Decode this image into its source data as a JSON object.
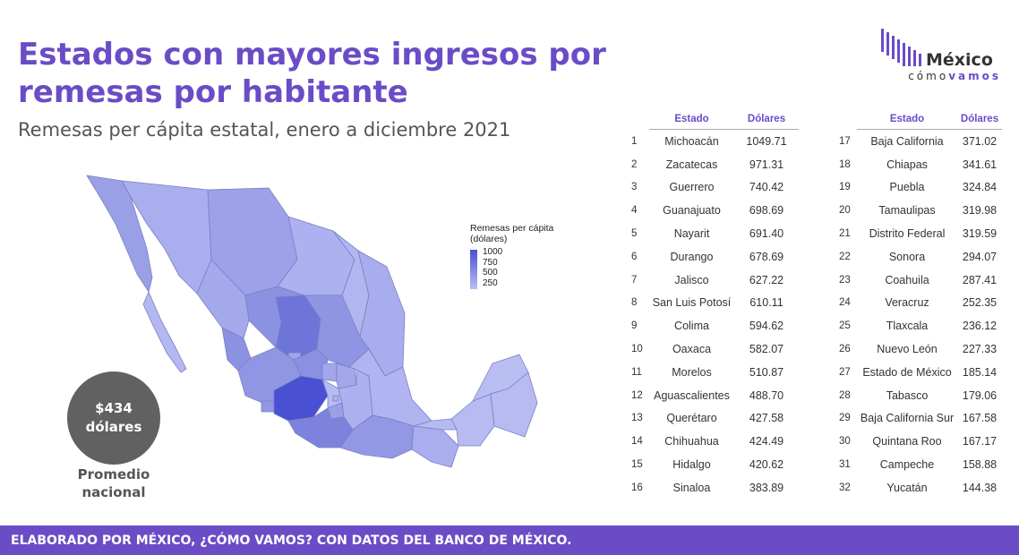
{
  "header": {
    "title": "Estados con mayores ingresos por remesas por habitante",
    "subtitle": "Remesas per cápita estatal, enero a diciembre 2021"
  },
  "logo": {
    "word": "México",
    "sub_a": "cómo",
    "sub_b": "vamos"
  },
  "legend": {
    "title": "Remesas per cápita (dólares)",
    "ticks": [
      "1000",
      "750",
      "500",
      "250"
    ]
  },
  "average": {
    "amount": "$434",
    "unit": "dólares",
    "label": "Promedio nacional"
  },
  "footer": {
    "text": "ELABORADO POR MÉXICO, ¿CÓMO VAMOS? CON DATOS DEL BANCO DE MÉXICO."
  },
  "colors": {
    "accent": "#6a4cc7",
    "map_high": "#4a50d2",
    "map_low": "#b9bef2",
    "avg_circle": "#616161"
  },
  "chart_data": {
    "type": "table",
    "title": "Estados con mayores ingresos por remesas por habitante",
    "subtitle": "Remesas per cápita estatal, enero a diciembre 2021",
    "columns": [
      "Estado",
      "Dólares"
    ],
    "rows": [
      {
        "rank": 1,
        "estado": "Michoacán",
        "dolares": "1049.71"
      },
      {
        "rank": 2,
        "estado": "Zacatecas",
        "dolares": "971.31"
      },
      {
        "rank": 3,
        "estado": "Guerrero",
        "dolares": "740.42"
      },
      {
        "rank": 4,
        "estado": "Guanajuato",
        "dolares": "698.69"
      },
      {
        "rank": 5,
        "estado": "Nayarit",
        "dolares": "691.40"
      },
      {
        "rank": 6,
        "estado": "Durango",
        "dolares": "678.69"
      },
      {
        "rank": 7,
        "estado": "Jalisco",
        "dolares": "627.22"
      },
      {
        "rank": 8,
        "estado": "San Luis Potosí",
        "dolares": "610.11"
      },
      {
        "rank": 9,
        "estado": "Colima",
        "dolares": "594.62"
      },
      {
        "rank": 10,
        "estado": "Oaxaca",
        "dolares": "582.07"
      },
      {
        "rank": 11,
        "estado": "Morelos",
        "dolares": "510.87"
      },
      {
        "rank": 12,
        "estado": "Aguascalientes",
        "dolares": "488.70"
      },
      {
        "rank": 13,
        "estado": "Querétaro",
        "dolares": "427.58"
      },
      {
        "rank": 14,
        "estado": "Chihuahua",
        "dolares": "424.49"
      },
      {
        "rank": 15,
        "estado": "Hidalgo",
        "dolares": "420.62"
      },
      {
        "rank": 16,
        "estado": "Sinaloa",
        "dolares": "383.89"
      },
      {
        "rank": 17,
        "estado": "Baja California",
        "dolares": "371.02"
      },
      {
        "rank": 18,
        "estado": "Chiapas",
        "dolares": "341.61"
      },
      {
        "rank": 19,
        "estado": "Puebla",
        "dolares": "324.84"
      },
      {
        "rank": 20,
        "estado": "Tamaulipas",
        "dolares": "319.98"
      },
      {
        "rank": 21,
        "estado": "Distrito Federal",
        "dolares": "319.59"
      },
      {
        "rank": 22,
        "estado": "Sonora",
        "dolares": "294.07"
      },
      {
        "rank": 23,
        "estado": "Coahuila",
        "dolares": "287.41"
      },
      {
        "rank": 24,
        "estado": "Veracruz",
        "dolares": "252.35"
      },
      {
        "rank": 25,
        "estado": "Tlaxcala",
        "dolares": "236.12"
      },
      {
        "rank": 26,
        "estado": "Nuevo León",
        "dolares": "227.33"
      },
      {
        "rank": 27,
        "estado": "Estado de México",
        "dolares": "185.14"
      },
      {
        "rank": 28,
        "estado": "Tabasco",
        "dolares": "179.06"
      },
      {
        "rank": 29,
        "estado": "Baja California Sur",
        "dolares": "167.58"
      },
      {
        "rank": 30,
        "estado": "Quintana Roo",
        "dolares": "167.17"
      },
      {
        "rank": 31,
        "estado": "Campeche",
        "dolares": "158.88"
      },
      {
        "rank": 32,
        "estado": "Yucatán",
        "dolares": "144.38"
      }
    ]
  }
}
